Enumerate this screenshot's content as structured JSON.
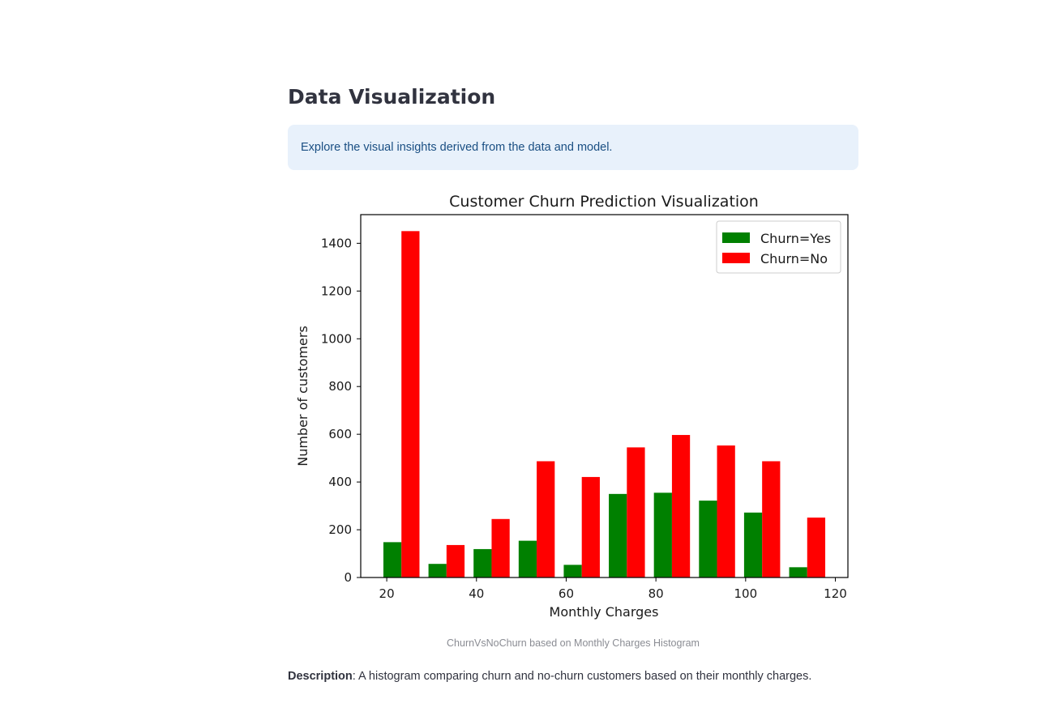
{
  "section": {
    "heading": "Data Visualization",
    "info": "Explore the visual insights derived from the data and model."
  },
  "caption": "ChurnVsNoChurn based on Monthly Charges Histogram",
  "description": {
    "label": "Description",
    "text": ": A histogram comparing churn and no-churn customers based on their monthly charges."
  },
  "chart_data": {
    "type": "bar",
    "title": "Customer Churn Prediction Visualization",
    "xlabel": "Monthly Charges",
    "ylabel": "Number of customers",
    "xlim": [
      14.2,
      122.8
    ],
    "ylim": [
      0,
      1520
    ],
    "xticks": [
      20,
      40,
      60,
      80,
      100,
      120
    ],
    "yticks": [
      0,
      200,
      400,
      600,
      800,
      1000,
      1200,
      1400
    ],
    "bin_edges": [
      18.25,
      28.3,
      38.35,
      48.4,
      58.45,
      68.5,
      78.55,
      88.6,
      98.65,
      108.7,
      118.75
    ],
    "legend_position": "top-right",
    "grid": false,
    "series": [
      {
        "name": "Churn=Yes",
        "color": "#008000",
        "values": [
          148,
          57,
          119,
          154,
          53,
          350,
          355,
          322,
          272,
          43
        ]
      },
      {
        "name": "Churn=No",
        "color": "#ff0000",
        "values": [
          1451,
          136,
          245,
          487,
          421,
          545,
          597,
          553,
          487,
          251
        ]
      }
    ]
  }
}
